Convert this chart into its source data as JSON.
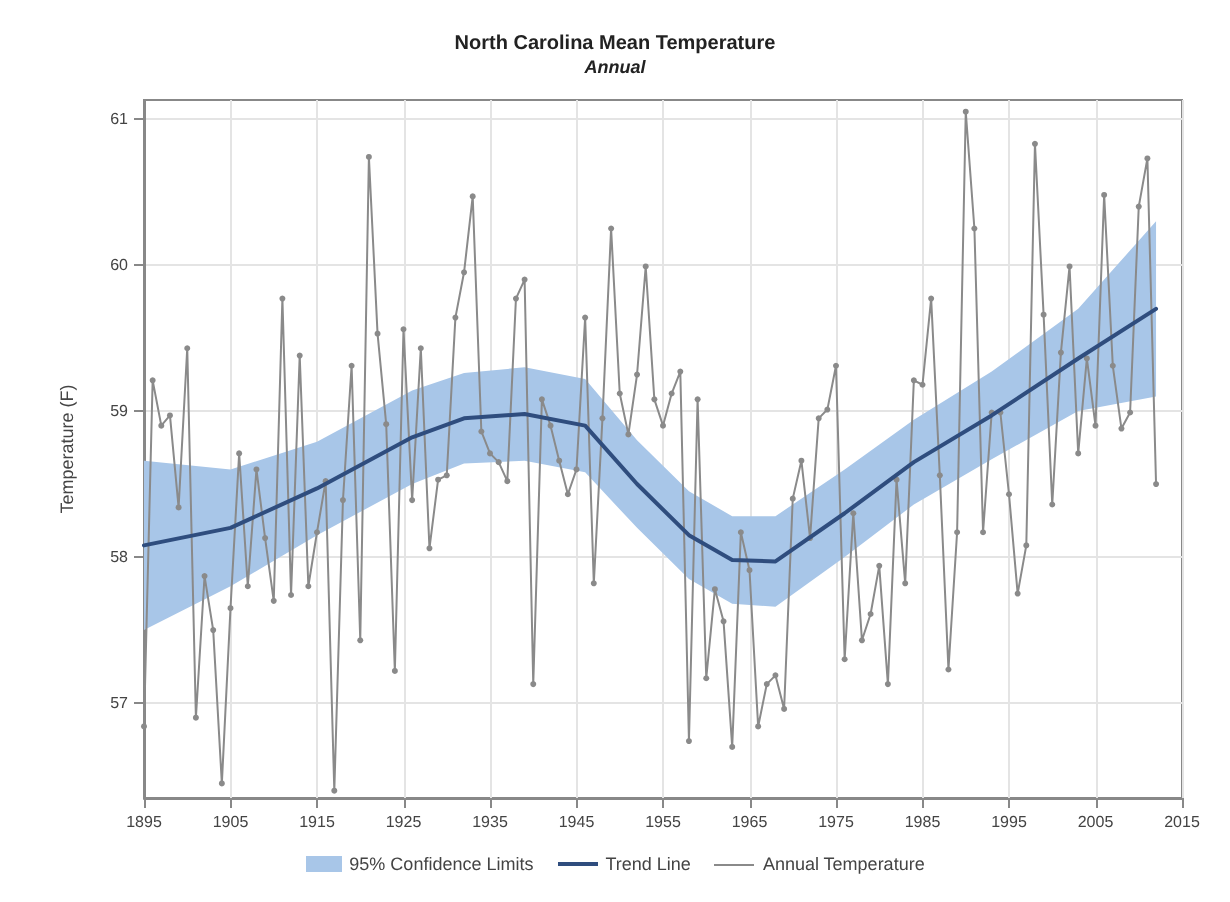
{
  "chart_data": {
    "type": "line",
    "title": "North Carolina Mean Temperature",
    "subtitle": "Annual",
    "ylabel": "Temperature (F)",
    "annotations": [
      "95% Confidence Limits"
    ],
    "xlim": [
      1895,
      2015
    ],
    "xticks": [
      1895,
      1905,
      1915,
      1925,
      1935,
      1945,
      1955,
      1965,
      1975,
      1985,
      1995,
      2005,
      2015
    ],
    "ylim": [
      56.35,
      61.13
    ],
    "yticks": [
      57,
      58,
      59,
      60,
      61
    ],
    "grid": true,
    "legend": "bottom",
    "series": [
      {
        "name": "Trend Line",
        "color": "#2f4d7e",
        "marker": "none",
        "x": [
          1895,
          1905,
          1915,
          1926,
          1932,
          1939,
          1946,
          1952,
          1958,
          1963,
          1968,
          1976,
          1984,
          1993,
          2003,
          2012
        ],
        "values": [
          58.08,
          58.2,
          58.47,
          58.82,
          58.95,
          58.98,
          58.9,
          58.5,
          58.15,
          57.98,
          57.97,
          58.3,
          58.65,
          58.97,
          59.36,
          59.7
        ],
        "lower": [
          57.5,
          57.8,
          58.15,
          58.5,
          58.64,
          58.66,
          58.58,
          58.2,
          57.85,
          57.68,
          57.66,
          58.0,
          58.36,
          58.67,
          59.0,
          59.1
        ],
        "upper": [
          58.66,
          58.6,
          58.79,
          59.14,
          59.26,
          59.3,
          59.22,
          58.8,
          58.45,
          58.28,
          58.28,
          58.6,
          58.94,
          59.27,
          59.7,
          60.3
        ]
      },
      {
        "name": "Annual Temperature",
        "color": "#8a8a8a",
        "marker": "circle",
        "x": [
          1895,
          1896,
          1897,
          1898,
          1899,
          1900,
          1901,
          1902,
          1903,
          1904,
          1905,
          1906,
          1907,
          1908,
          1909,
          1910,
          1911,
          1912,
          1913,
          1914,
          1915,
          1916,
          1917,
          1918,
          1919,
          1920,
          1921,
          1922,
          1923,
          1924,
          1925,
          1926,
          1927,
          1928,
          1929,
          1930,
          1931,
          1932,
          1933,
          1934,
          1935,
          1936,
          1937,
          1938,
          1939,
          1940,
          1941,
          1942,
          1943,
          1944,
          1945,
          1946,
          1947,
          1948,
          1949,
          1950,
          1951,
          1952,
          1953,
          1954,
          1955,
          1956,
          1957,
          1958,
          1959,
          1960,
          1961,
          1962,
          1963,
          1964,
          1965,
          1966,
          1967,
          1968,
          1969,
          1970,
          1971,
          1972,
          1973,
          1974,
          1975,
          1976,
          1977,
          1978,
          1979,
          1980,
          1981,
          1982,
          1983,
          1984,
          1985,
          1986,
          1987,
          1988,
          1989,
          1990,
          1991,
          1992,
          1993,
          1994,
          1995,
          1996,
          1997,
          1998,
          1999,
          2000,
          2001,
          2002,
          2003,
          2004,
          2005,
          2006,
          2007,
          2008,
          2009,
          2010,
          2011,
          2012
        ],
        "values": [
          56.84,
          59.21,
          58.9,
          58.97,
          58.34,
          59.43,
          56.9,
          57.87,
          57.5,
          56.45,
          57.65,
          58.71,
          57.8,
          58.6,
          58.13,
          57.7,
          59.77,
          57.74,
          59.38,
          57.8,
          58.17,
          58.52,
          56.4,
          58.39,
          59.31,
          57.43,
          60.74,
          59.53,
          58.91,
          57.22,
          59.56,
          58.39,
          59.43,
          58.06,
          58.53,
          58.56,
          59.64,
          59.95,
          60.47,
          58.86,
          58.71,
          58.65,
          58.52,
          59.77,
          59.9,
          57.13,
          59.08,
          58.9,
          58.66,
          58.43,
          58.6,
          59.64,
          57.82,
          58.95,
          60.25,
          59.12,
          58.84,
          59.25,
          59.99,
          59.08,
          58.9,
          59.12,
          59.27,
          56.74,
          59.08,
          57.17,
          57.78,
          57.56,
          56.7,
          58.17,
          57.91,
          56.84,
          57.13,
          57.19,
          56.96,
          58.4,
          58.66,
          58.13,
          58.95,
          59.01,
          59.31,
          57.3,
          58.3,
          57.43,
          57.61,
          57.94,
          57.13,
          58.53,
          57.82,
          59.21,
          59.18,
          59.77,
          58.56,
          57.23,
          58.17,
          61.05,
          60.25,
          58.17,
          58.99,
          58.99,
          58.43,
          57.75,
          58.08,
          60.83,
          59.66,
          58.36,
          59.4,
          59.99,
          58.71,
          59.36,
          58.9,
          60.48,
          59.31,
          58.88,
          58.99,
          60.4,
          60.73,
          58.5
        ]
      }
    ]
  }
}
